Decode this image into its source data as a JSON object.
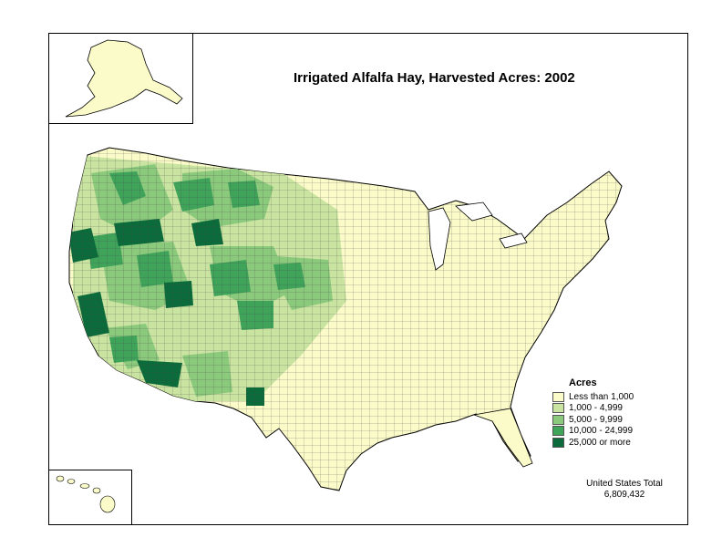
{
  "title": "Irrigated Alfalfa Hay, Harvested Acres:  2002",
  "legend": {
    "title": "Acres",
    "items": [
      {
        "label": "Less than 1,000",
        "color": "#fbfbc9"
      },
      {
        "label": "1,000 - 4,999",
        "color": "#c9e3a0"
      },
      {
        "label": "5,000 - 9,999",
        "color": "#8bc97c"
      },
      {
        "label": "10,000 - 24,999",
        "color": "#3fa35a"
      },
      {
        "label": "25,000 or more",
        "color": "#0c6b3a"
      }
    ]
  },
  "total": {
    "label": "United States Total",
    "value": "6,809,432"
  },
  "colors": {
    "background": "#ffffff",
    "border": "#000000",
    "county_lines": "#333333"
  },
  "insets": [
    "Alaska",
    "Hawaii"
  ]
}
